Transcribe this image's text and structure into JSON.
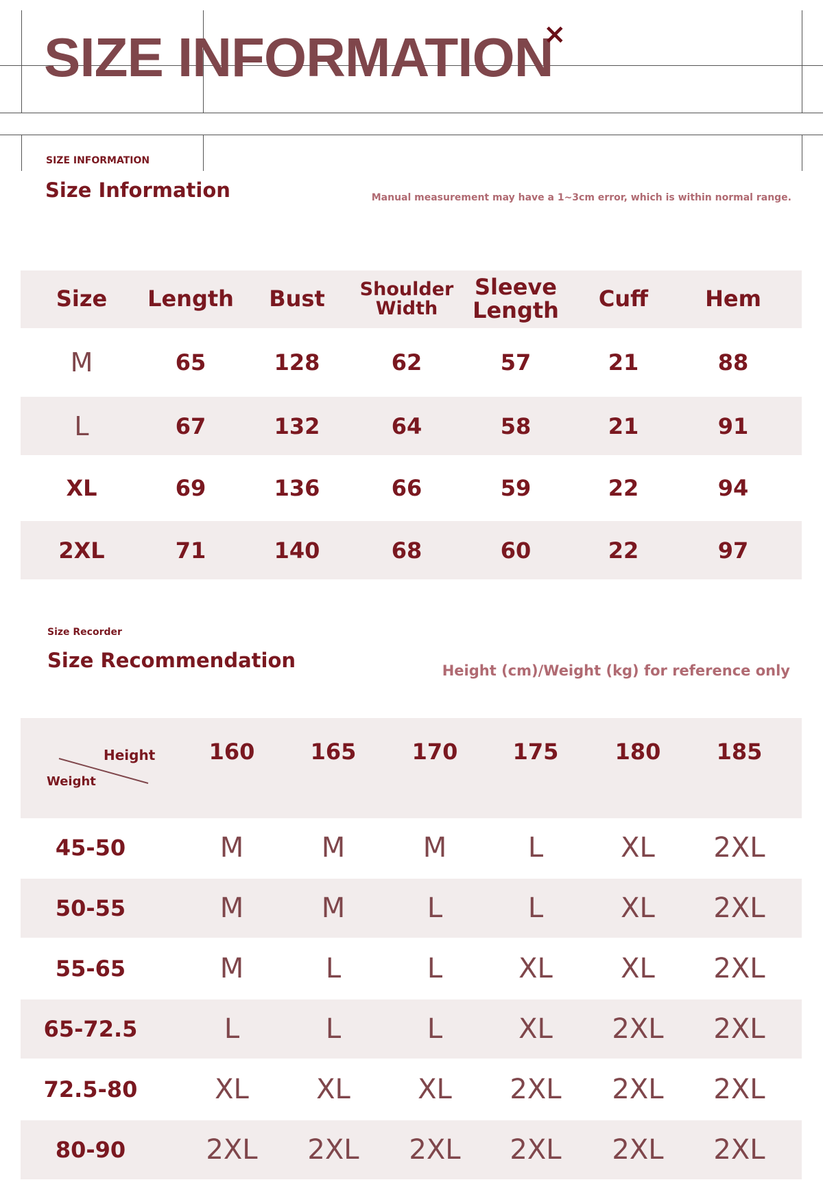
{
  "header": {
    "title": "SIZE INFORMATION",
    "close_icon": "×"
  },
  "size_info": {
    "label": "SIZE INFORMATION",
    "title": "Size Information",
    "note": "Manual measurement may have a 1~3cm error, which is within normal range.",
    "columns": [
      "Size",
      "Length",
      "Bust",
      "Shoulder Width",
      "Sleeve Length",
      "Cuff",
      "Hem"
    ],
    "rows": [
      [
        "M",
        "65",
        "128",
        "62",
        "57",
        "21",
        "88"
      ],
      [
        "L",
        "67",
        "132",
        "64",
        "58",
        "21",
        "91"
      ],
      [
        "XL",
        "69",
        "136",
        "66",
        "59",
        "22",
        "94"
      ],
      [
        "2XL",
        "71",
        "140",
        "68",
        "60",
        "22",
        "97"
      ]
    ]
  },
  "recommendation": {
    "label": "Size Recorder",
    "title": "Size Recommendation",
    "note": "Height (cm)/Weight (kg) for reference only",
    "corner_height": "Height",
    "corner_weight": "Weight",
    "heights": [
      "160",
      "165",
      "170",
      "175",
      "180",
      "185"
    ],
    "rows": [
      {
        "weight": "45-50",
        "sizes": [
          "M",
          "M",
          "M",
          "L",
          "XL",
          "2XL"
        ]
      },
      {
        "weight": "50-55",
        "sizes": [
          "M",
          "M",
          "L",
          "L",
          "XL",
          "2XL"
        ]
      },
      {
        "weight": "55-65",
        "sizes": [
          "M",
          "L",
          "L",
          "XL",
          "XL",
          "2XL"
        ]
      },
      {
        "weight": "65-72.5",
        "sizes": [
          "L",
          "L",
          "L",
          "XL",
          "2XL",
          "2XL"
        ]
      },
      {
        "weight": "72.5-80",
        "sizes": [
          "XL",
          "XL",
          "XL",
          "2XL",
          "2XL",
          "2XL"
        ]
      },
      {
        "weight": "80-90",
        "sizes": [
          "2XL",
          "2XL",
          "2XL",
          "2XL",
          "2XL",
          "2XL"
        ]
      }
    ]
  },
  "colors": {
    "accent": "#7a1820",
    "muted": "#7f464b",
    "shade": "#f2ecec",
    "note": "#b06a72"
  }
}
